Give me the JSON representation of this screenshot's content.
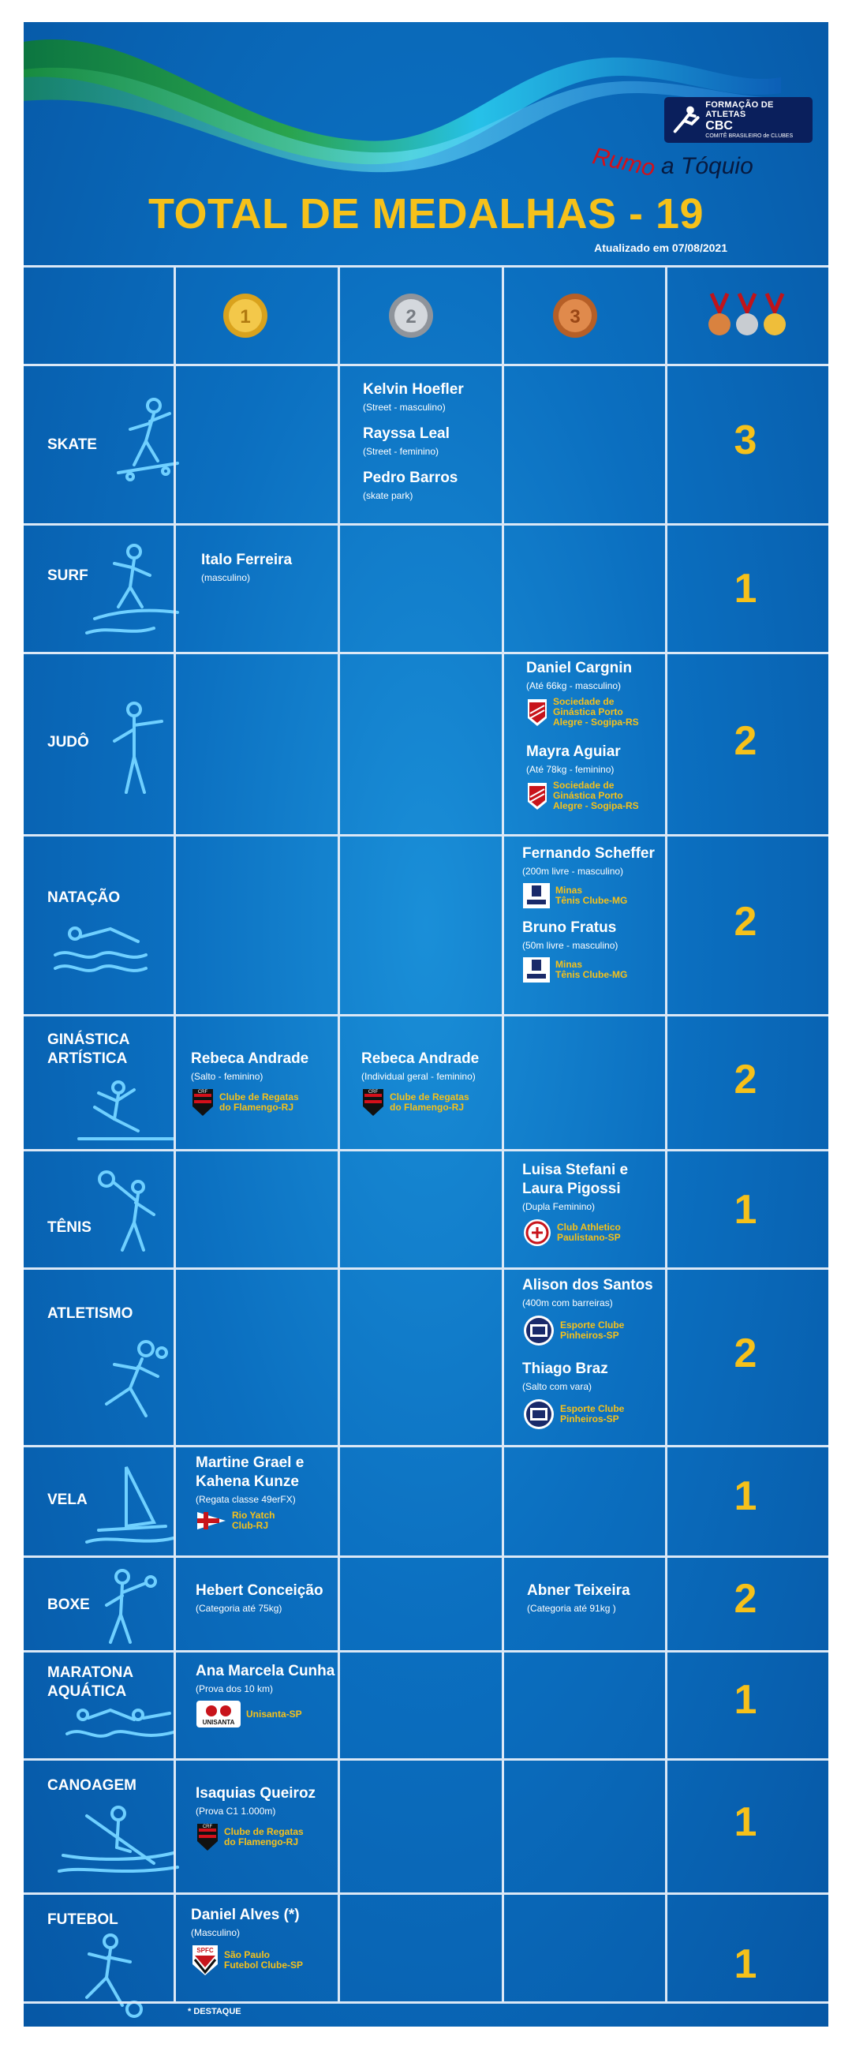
{
  "header": {
    "logo_top": "FORMAÇÃO DE ATLETAS",
    "logo_brand": "CBC",
    "logo_sub": "COMITÊ BRASILEIRO de CLUBES",
    "slogan_part1": "Rumo",
    "slogan_part2": "a Tóquio",
    "title": "TOTAL DE MEDALHAS - 19",
    "updated": "Atualizado em 07/08/2021"
  },
  "columns": {
    "gold_icon": "gold-medal-icon",
    "silver_icon": "silver-medal-icon",
    "bronze_icon": "bronze-medal-icon",
    "total_icon": "three-medals-icon"
  },
  "rows": [
    {
      "sport": "SKATE",
      "total": "3",
      "silver": [
        {
          "name": "Kelvin Hoefler",
          "event": "(Street - masculino)"
        },
        {
          "name": "Rayssa Leal",
          "event": "(Street - feminino)"
        },
        {
          "name": "Pedro Barros",
          "event": "(skate park)"
        }
      ]
    },
    {
      "sport": "SURF",
      "total": "1",
      "gold": [
        {
          "name": "Italo Ferreira",
          "event": "(masculino)"
        }
      ]
    },
    {
      "sport": "JUDÔ",
      "total": "2",
      "bronze": [
        {
          "name": "Daniel Cargnin",
          "event": "(Até 66kg - masculino)",
          "club1": "Sociedade de",
          "club2": "Ginástica Porto",
          "club3": "Alegre - Sogipa-RS"
        },
        {
          "name": "Mayra Aguiar",
          "event": "(Até 78kg - feminino)",
          "club1": "Sociedade de",
          "club2": "Ginástica Porto",
          "club3": "Alegre - Sogipa-RS"
        }
      ]
    },
    {
      "sport": "NATAÇÃO",
      "total": "2",
      "bronze": [
        {
          "name": "Fernando Scheffer",
          "event": "(200m livre - masculino)",
          "club1": "Minas",
          "club2": "Tênis Clube-MG"
        },
        {
          "name": "Bruno Fratus",
          "event": "(50m livre - masculino)",
          "club1": "Minas",
          "club2": "Tênis Clube-MG"
        }
      ]
    },
    {
      "sport1": "GINÁSTICA",
      "sport2": "ARTÍSTICA",
      "total": "2",
      "gold": [
        {
          "name": "Rebeca Andrade",
          "event": "(Salto - feminino)",
          "club1": "Clube de Regatas",
          "club2": "do Flamengo-RJ"
        }
      ],
      "silver": [
        {
          "name": "Rebeca Andrade",
          "event": "(Individual geral - feminino)",
          "club1": "Clube de Regatas",
          "club2": "do Flamengo-RJ"
        }
      ]
    },
    {
      "sport": "TÊNIS",
      "total": "1",
      "bronze": [
        {
          "name1": "Luisa Stefani e",
          "name2": "Laura Pigossi",
          "event": "(Dupla Feminino)",
          "club1": "Club Athletico",
          "club2": "Paulistano-SP"
        }
      ]
    },
    {
      "sport": "ATLETISMO",
      "total": "2",
      "bronze": [
        {
          "name": "Alison dos Santos",
          "event": "(400m com barreiras)",
          "club1": "Esporte Clube",
          "club2": "Pinheiros-SP"
        },
        {
          "name": "Thiago Braz",
          "event": "(Salto com vara)",
          "club1": "Esporte Clube",
          "club2": "Pinheiros-SP"
        }
      ]
    },
    {
      "sport": "VELA",
      "total": "1",
      "gold": [
        {
          "name1": "Martine Grael e",
          "name2": "Kahena Kunze",
          "event": "(Regata classe 49erFX)",
          "club1": "Rio Yatch",
          "club2": "Club-RJ"
        }
      ]
    },
    {
      "sport": "BOXE",
      "total": "2",
      "gold": [
        {
          "name": "Hebert Conceição",
          "event": "(Categoria até 75kg)"
        }
      ],
      "bronze": [
        {
          "name": "Abner Teixeira",
          "event": "(Categoria até 91kg )"
        }
      ]
    },
    {
      "sport1": "MARATONA",
      "sport2": "AQUÁTICA",
      "total": "1",
      "gold": [
        {
          "name": "Ana Marcela Cunha",
          "event": "(Prova dos 10 km)",
          "club1": "Unisanta-SP",
          "logo": "UNISANTA"
        }
      ]
    },
    {
      "sport": "CANOAGEM",
      "total": "1",
      "gold": [
        {
          "name": "Isaquias Queiroz",
          "event": "(Prova C1 1.000m)",
          "club1": "Clube de Regatas",
          "club2": "do Flamengo-RJ"
        }
      ]
    },
    {
      "sport": "FUTEBOL",
      "total": "1",
      "gold": [
        {
          "name": "Daniel Alves (*)",
          "event": "(Masculino)",
          "club1": "São Paulo",
          "club2": "Futebol Clube-SP",
          "logo": "SPFC"
        }
      ]
    }
  ],
  "footnote": "* DESTAQUE",
  "colors": {
    "accent": "#f6c11a",
    "background": "#0b6fc0",
    "grid": "#dbe8f6"
  }
}
